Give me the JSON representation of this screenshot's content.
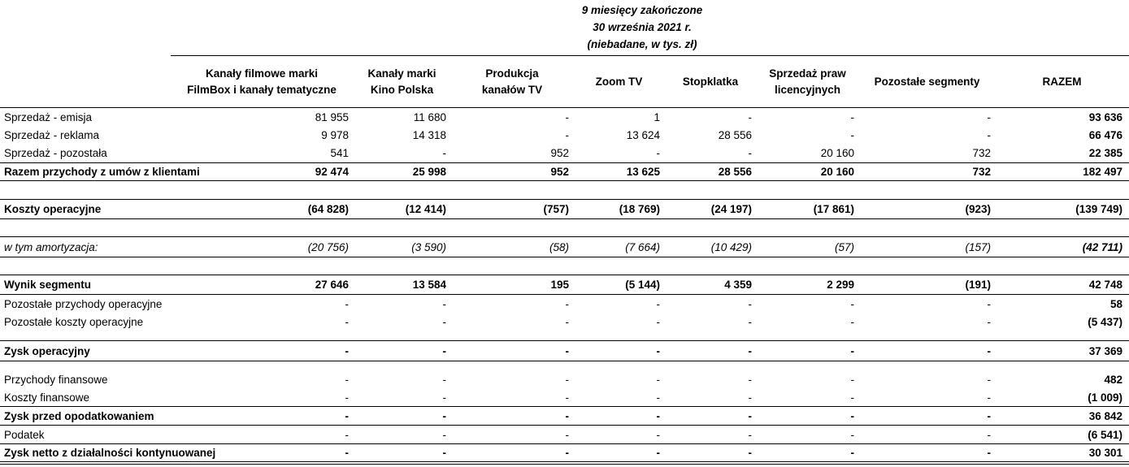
{
  "header": {
    "title_lines": [
      "9 miesięcy zakończone",
      "30 września 2021 r.",
      "(niebadane, w tys. zł)"
    ],
    "columns": [
      [
        "Kanały filmowe marki",
        "FilmBox i kanały tematyczne"
      ],
      [
        "Kanały marki",
        "Kino Polska"
      ],
      [
        "Produkcja",
        "kanałów TV"
      ],
      [
        "Zoom TV"
      ],
      [
        "Stopklatka"
      ],
      [
        "Sprzedaż praw",
        "licencyjnych"
      ],
      [
        "Pozostałe segmenty"
      ],
      [
        "RAZEM"
      ]
    ]
  },
  "rows": [
    {
      "label": "Sprzedaż - emisja",
      "values": [
        "81 955",
        "11 680",
        "-",
        "1",
        "-",
        "-",
        "-",
        "93 636"
      ]
    },
    {
      "label": "Sprzedaż - reklama",
      "values": [
        "9 978",
        "14 318",
        "-",
        "13 624",
        "28 556",
        "-",
        "-",
        "66 476"
      ]
    },
    {
      "label": "Sprzedaż - pozostała",
      "values": [
        "541",
        "-",
        "952",
        "-",
        "-",
        "20 160",
        "732",
        "22 385"
      ]
    },
    {
      "label": "Razem przychody z umów z klientami",
      "values": [
        "92 474",
        "25 998",
        "952",
        "13 625",
        "28 556",
        "20 160",
        "732",
        "182 497"
      ]
    },
    {
      "label": "",
      "values": []
    },
    {
      "label": "Koszty operacyjne",
      "values": [
        "(64 828)",
        "(12 414)",
        "(757)",
        "(18 769)",
        "(24 197)",
        "(17 861)",
        "(923)",
        "(139 749)"
      ]
    },
    {
      "label": "",
      "values": []
    },
    {
      "label": "w tym amortyzacja:",
      "values": [
        "(20 756)",
        "(3 590)",
        "(58)",
        "(7 664)",
        "(10 429)",
        "(57)",
        "(157)",
        "(42 711)"
      ]
    },
    {
      "label": "",
      "values": []
    },
    {
      "label": "Wynik segmentu",
      "values": [
        "27 646",
        "13 584",
        "195",
        "(5 144)",
        "4 359",
        "2 299",
        "(191)",
        "42 748"
      ]
    },
    {
      "label": "Pozostałe przychody operacyjne",
      "values": [
        "-",
        "-",
        "-",
        "-",
        "-",
        "-",
        "-",
        "58"
      ]
    },
    {
      "label": "Pozostałe koszty operacyjne",
      "values": [
        "-",
        "-",
        "-",
        "-",
        "-",
        "-",
        "-",
        "(5 437)"
      ]
    },
    {
      "label": "",
      "values": []
    },
    {
      "label": "Zysk operacyjny",
      "values": [
        "-",
        "-",
        "-",
        "-",
        "-",
        "-",
        "-",
        "37 369"
      ]
    },
    {
      "label": "",
      "values": []
    },
    {
      "label": "Przychody finansowe",
      "values": [
        "-",
        "-",
        "-",
        "-",
        "-",
        "-",
        "-",
        "482"
      ]
    },
    {
      "label": "Koszty finansowe",
      "values": [
        "-",
        "-",
        "-",
        "-",
        "-",
        "-",
        "-",
        "(1 009)"
      ]
    },
    {
      "label": "Zysk przed opodatkowaniem",
      "values": [
        "-",
        "-",
        "-",
        "-",
        "-",
        "-",
        "-",
        "36 842"
      ]
    },
    {
      "label": "Podatek",
      "values": [
        "-",
        "-",
        "-",
        "-",
        "-",
        "-",
        "-",
        "(6 541)"
      ]
    },
    {
      "label": "Zysk netto z działalności kontynuowanej",
      "values": [
        "-",
        "-",
        "-",
        "-",
        "-",
        "-",
        "-",
        "30 301"
      ]
    }
  ]
}
